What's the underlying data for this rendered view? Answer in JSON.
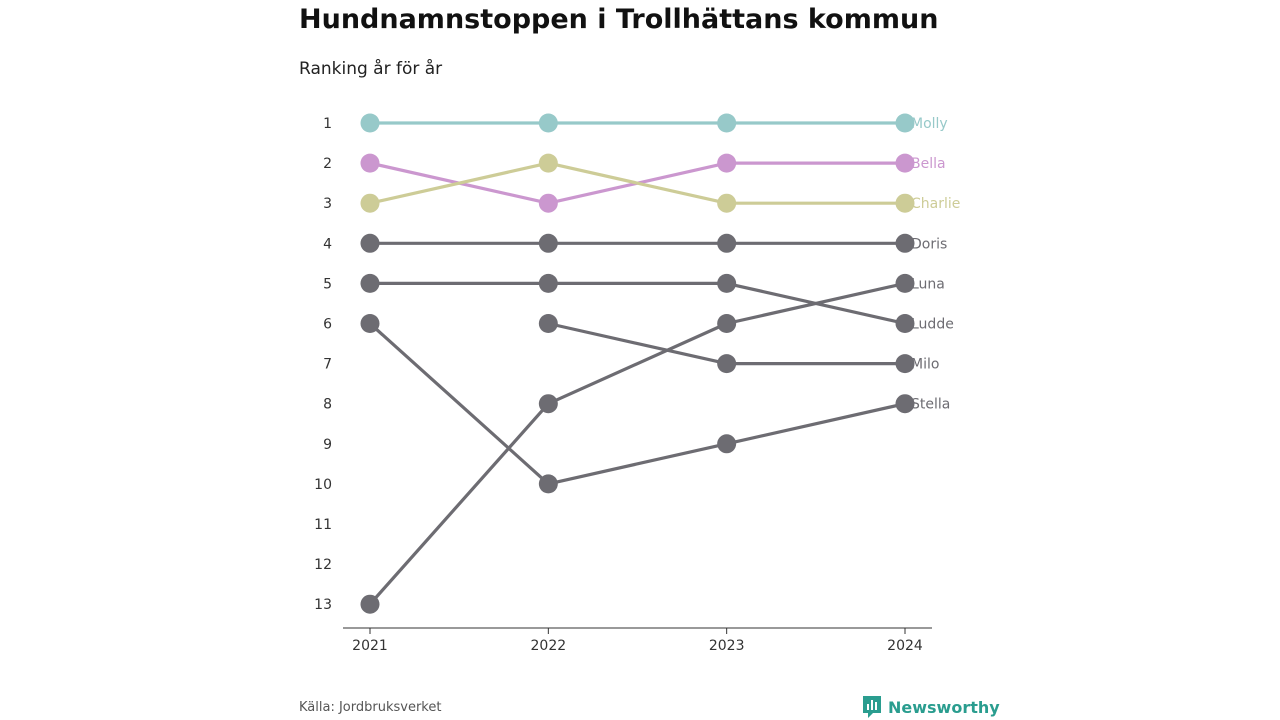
{
  "title": "Hundnamnstoppen i Trollhättans kommun",
  "subtitle": "Ranking år för år",
  "source": "Källa: Jordbruksverket",
  "brand": {
    "name": "Newsworthy",
    "icon": "newsworthy-logo-icon",
    "color": "#2a9d8f"
  },
  "chart_data": {
    "type": "line",
    "chart_subtype": "bump",
    "x": [
      "2021",
      "2022",
      "2023",
      "2024"
    ],
    "y_ticks": [
      "1",
      "2",
      "3",
      "4",
      "5",
      "6",
      "7",
      "8",
      "9",
      "10",
      "11",
      "12",
      "13"
    ],
    "ylim": [
      1,
      13
    ],
    "y_reversed": true,
    "grid": false,
    "legend": "end-labels",
    "series": [
      {
        "name": "Molly",
        "color": "#97c9c9",
        "values": [
          1,
          1,
          1,
          1
        ]
      },
      {
        "name": "Bella",
        "color": "#cb97cf",
        "values": [
          2,
          3,
          2,
          2
        ]
      },
      {
        "name": "Charlie",
        "color": "#cdcc97",
        "values": [
          3,
          2,
          3,
          3
        ]
      },
      {
        "name": "Doris",
        "color": "#6d6c72",
        "values": [
          4,
          4,
          4,
          4
        ]
      },
      {
        "name": "Luna",
        "color": "#6d6c72",
        "values": [
          13,
          8,
          6,
          5
        ]
      },
      {
        "name": "Ludde",
        "color": "#6d6c72",
        "values": [
          5,
          5,
          5,
          6
        ]
      },
      {
        "name": "Milo",
        "color": "#6d6c72",
        "values": [
          null,
          6,
          7,
          7
        ]
      },
      {
        "name": "Stella",
        "color": "#6d6c72",
        "values": [
          6,
          10,
          9,
          8
        ]
      }
    ]
  }
}
